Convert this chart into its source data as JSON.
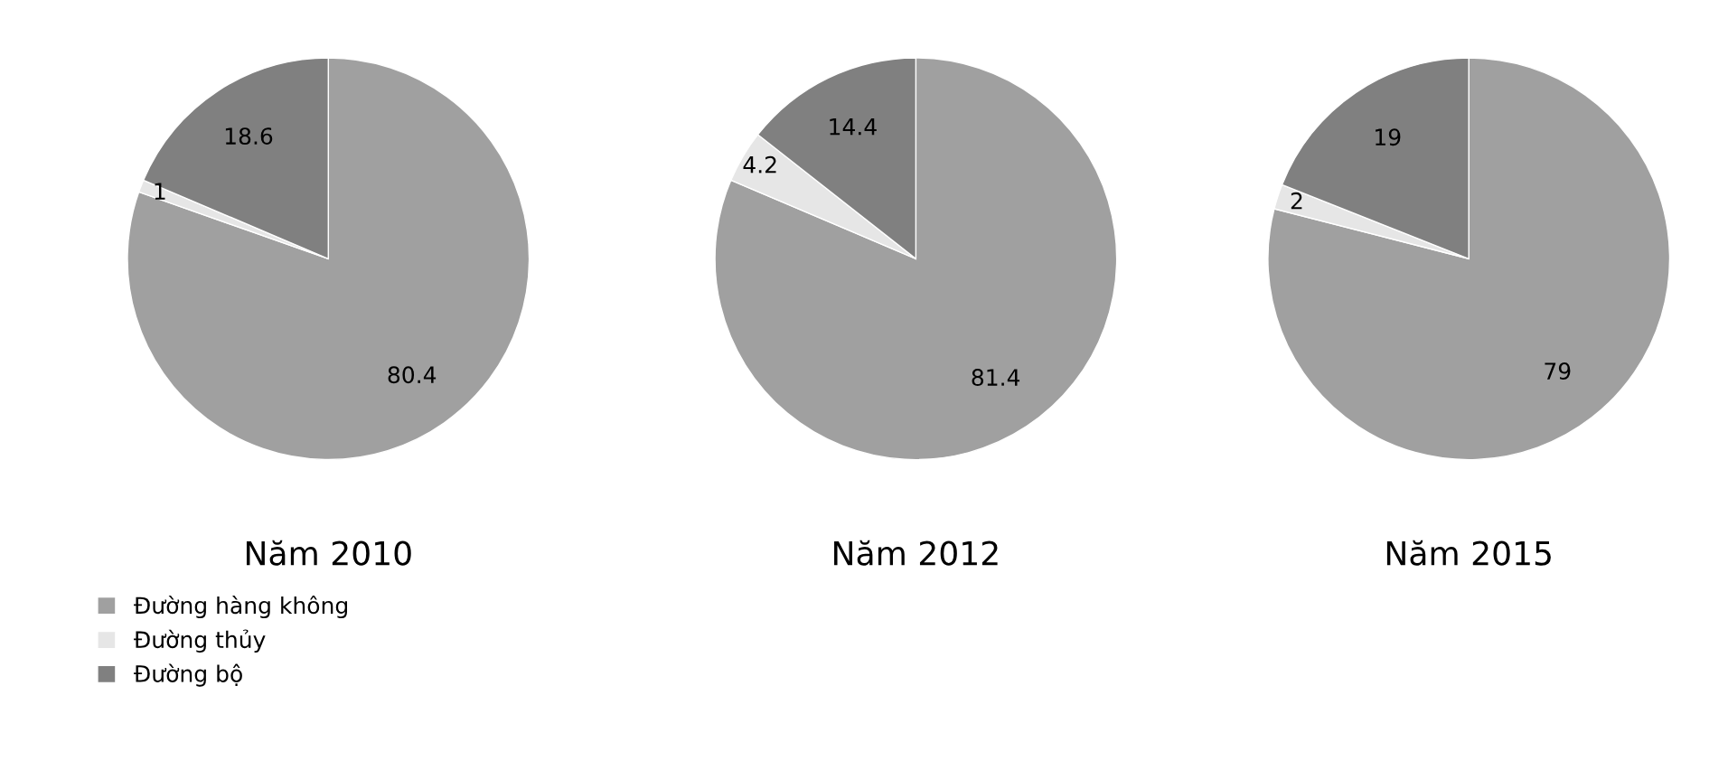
{
  "chart_data": [
    {
      "type": "pie",
      "title": "Năm 2010",
      "categories": [
        "Đường hàng không",
        "Đường thủy",
        "Đường bộ"
      ],
      "values": [
        80.4,
        1,
        18.6
      ],
      "colors": [
        "#a0a0a0",
        "#e6e6e6",
        "#808080"
      ],
      "data_labels": true,
      "legend": "bottom left"
    },
    {
      "type": "pie",
      "title": "Năm 2012",
      "categories": [
        null,
        null,
        null
      ],
      "values": [
        81.4,
        4.2,
        14.4
      ],
      "colors": [
        "#a0a0a0",
        "#e6e6e6",
        "#808080"
      ],
      "data_labels": true
    },
    {
      "type": "pie",
      "title": "Năm 2015",
      "categories": [
        null,
        null,
        null
      ],
      "values": [
        79,
        2,
        19
      ],
      "colors": [
        "#a0a0a0",
        "#e6e6e6",
        "#808080"
      ],
      "data_labels": true
    }
  ]
}
